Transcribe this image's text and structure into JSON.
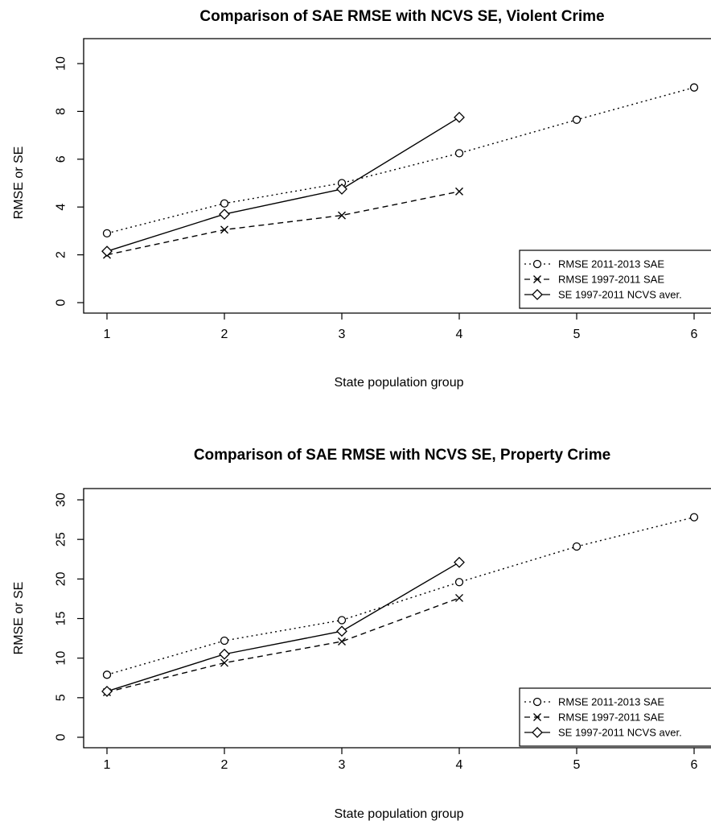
{
  "chart_data": [
    {
      "type": "line",
      "title": "Comparison of SAE RMSE with NCVS SE, Violent Crime",
      "xlabel": "State population group",
      "ylabel": "RMSE or SE",
      "xlim": [
        1,
        6
      ],
      "ylim": [
        0,
        10
      ],
      "xticks": [
        "1",
        "2",
        "3",
        "4",
        "5",
        "6"
      ],
      "yticks": [
        "0",
        "2",
        "4",
        "6",
        "8",
        "10"
      ],
      "legend_position": "bottom-right",
      "series": [
        {
          "name": "RMSE 2011-2013 SAE",
          "marker": "circle",
          "line": "dotted",
          "x": [
            1,
            2,
            3,
            4,
            5,
            6
          ],
          "y": [
            2.9,
            4.15,
            5.0,
            6.25,
            7.65,
            9.0
          ]
        },
        {
          "name": "RMSE 1997-2011 SAE",
          "marker": "cross",
          "line": "dashed",
          "x": [
            1,
            2,
            3,
            4
          ],
          "y": [
            2.0,
            3.05,
            3.65,
            4.65
          ]
        },
        {
          "name": "SE 1997-2011 NCVS aver.",
          "marker": "diamond",
          "line": "solid",
          "x": [
            1,
            2,
            3,
            4
          ],
          "y": [
            2.15,
            3.7,
            4.75,
            7.75
          ]
        }
      ]
    },
    {
      "type": "line",
      "title": "Comparison of SAE RMSE with NCVS SE, Property Crime",
      "xlabel": "State population group",
      "ylabel": "RMSE or SE",
      "xlim": [
        1,
        6
      ],
      "ylim": [
        0,
        30
      ],
      "xticks": [
        "1",
        "2",
        "3",
        "4",
        "5",
        "6"
      ],
      "yticks": [
        "0",
        "5",
        "10",
        "15",
        "20",
        "25",
        "30"
      ],
      "legend_position": "bottom-right",
      "series": [
        {
          "name": "RMSE 2011-2013 SAE",
          "marker": "circle",
          "line": "dotted",
          "x": [
            1,
            2,
            3,
            4,
            5,
            6
          ],
          "y": [
            7.9,
            12.2,
            14.8,
            19.6,
            24.1,
            27.8
          ]
        },
        {
          "name": "RMSE 1997-2011 SAE",
          "marker": "cross",
          "line": "dashed",
          "x": [
            1,
            2,
            3,
            4
          ],
          "y": [
            5.7,
            9.4,
            12.1,
            17.6
          ]
        },
        {
          "name": "SE 1997-2011 NCVS aver.",
          "marker": "diamond",
          "line": "solid",
          "x": [
            1,
            2,
            3,
            4
          ],
          "y": [
            5.8,
            10.5,
            13.4,
            22.1
          ]
        }
      ]
    }
  ]
}
